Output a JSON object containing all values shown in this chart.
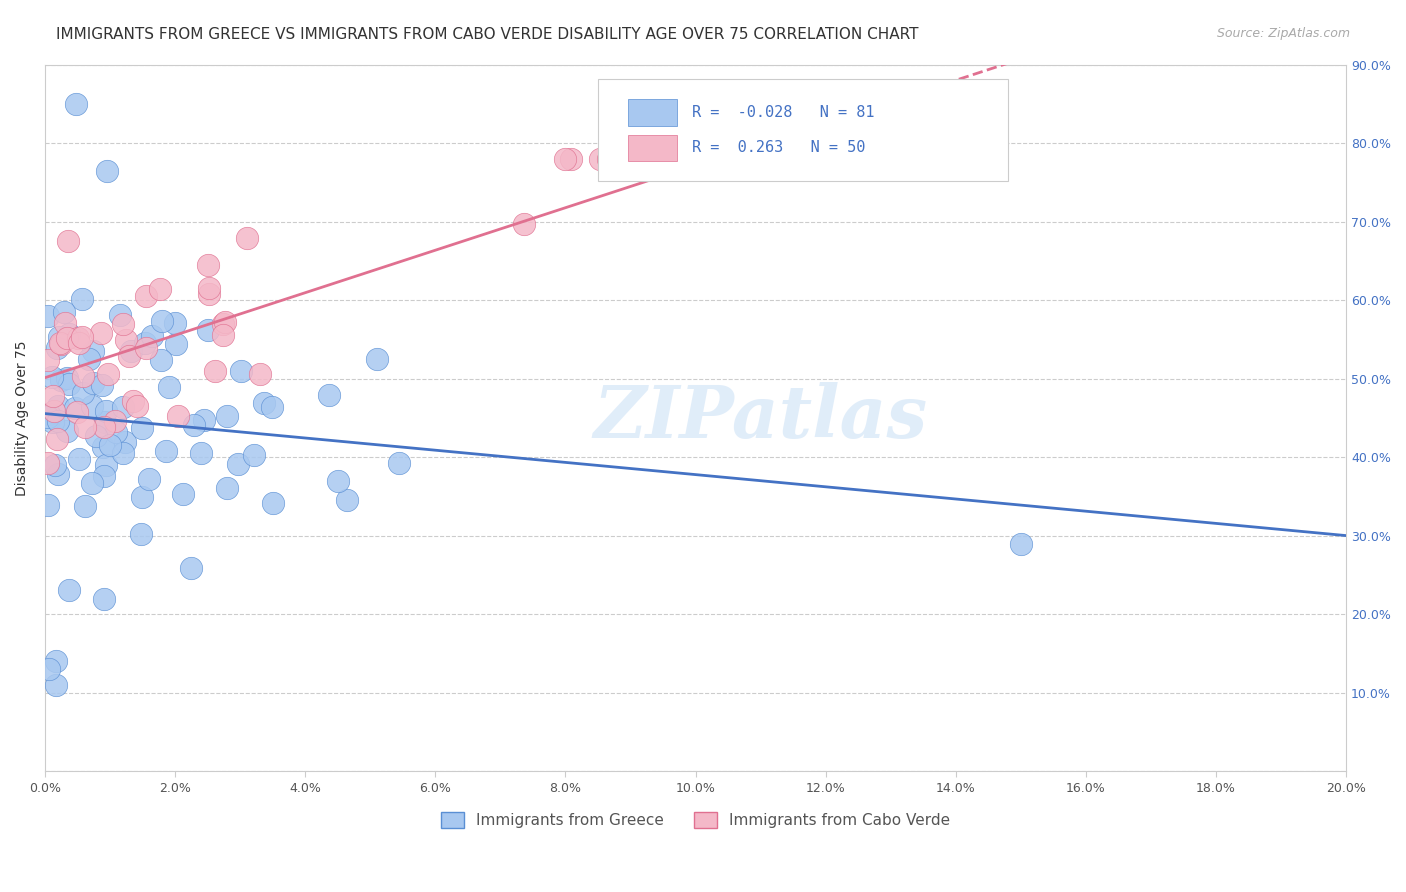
{
  "title": "IMMIGRANTS FROM GREECE VS IMMIGRANTS FROM CABO VERDE DISABILITY AGE OVER 75 CORRELATION CHART",
  "source": "Source: ZipAtlas.com",
  "ylabel": "Disability Age Over 75",
  "xlim": [
    0.0,
    0.2
  ],
  "ylim": [
    0.0,
    0.9
  ],
  "xticks": [
    0.0,
    0.02,
    0.04,
    0.06,
    0.08,
    0.1,
    0.12,
    0.14,
    0.16,
    0.18,
    0.2
  ],
  "yticks": [
    0.0,
    0.1,
    0.2,
    0.3,
    0.4,
    0.5,
    0.6,
    0.7,
    0.8,
    0.9
  ],
  "xtick_labels": [
    "0.0%",
    "2.0%",
    "4.0%",
    "6.0%",
    "8.0%",
    "10.0%",
    "12.0%",
    "14.0%",
    "16.0%",
    "18.0%",
    "20.0%"
  ],
  "series_greece": {
    "label": "Immigrants from Greece",
    "color": "#a8c8f0",
    "edge_color": "#5a8fd4",
    "R": -0.028,
    "N": 81,
    "line_color": "#4472c4"
  },
  "series_caboverde": {
    "label": "Immigrants from Cabo Verde",
    "color": "#f4b8c8",
    "edge_color": "#e07090",
    "R": 0.263,
    "N": 50,
    "line_color": "#e07090"
  },
  "watermark": "ZIPatlas",
  "background_color": "#ffffff",
  "grid_color": "#cccccc",
  "title_fontsize": 11,
  "axis_fontsize": 9,
  "legend_fontsize": 11
}
